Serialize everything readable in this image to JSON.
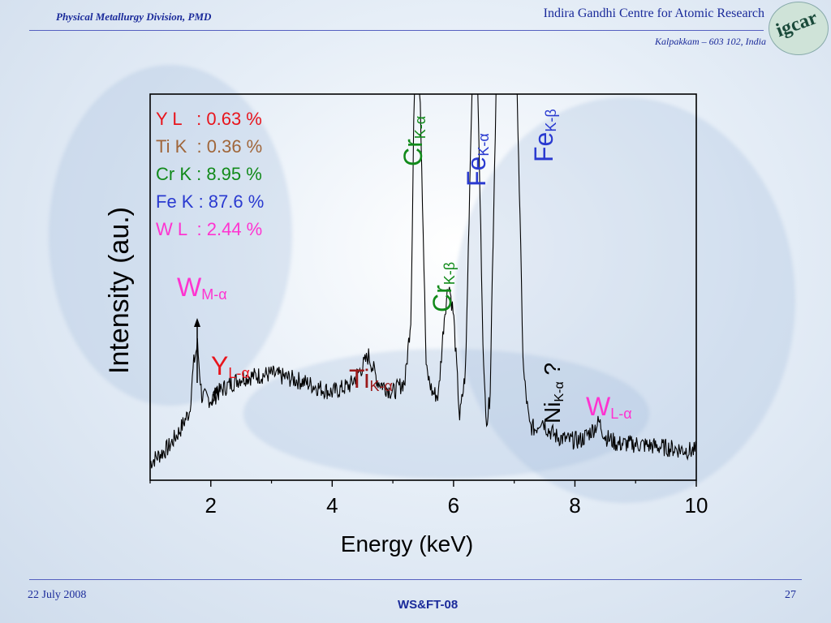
{
  "header": {
    "division": "Physical Metallurgy Division, PMD",
    "institute": "Indira Gandhi Centre for Atomic Research",
    "address": "Kalpakkam – 603 102, India",
    "logo_text": "igcar"
  },
  "footer": {
    "date": "22 July 2008",
    "event": "WS&FT-08",
    "page": "27"
  },
  "composition": [
    {
      "label": "Y L   : 0.63 %",
      "color": "#e8141c"
    },
    {
      "label": "Ti K  : 0.36 %",
      "color": "#a0663a"
    },
    {
      "label": "Cr K : 8.95 %",
      "color": "#118a1a"
    },
    {
      "label": "Fe K : 87.6 %",
      "color": "#2a3ad0"
    },
    {
      "label": "W L  : 2.44 %",
      "color": "#ff33d0"
    }
  ],
  "chart_data": {
    "type": "line",
    "xlabel": "Energy (keV)",
    "ylabel": "Intensity (au.)",
    "xlim": [
      1.0,
      10.0
    ],
    "ylim": [
      0,
      100
    ],
    "xticks": [
      2,
      4,
      6,
      8,
      10
    ],
    "series": [
      {
        "x": [
          1.0,
          1.3,
          1.5,
          1.65,
          1.72,
          1.78,
          1.85,
          2.0,
          2.2,
          2.5,
          3.0,
          3.5,
          4.0,
          4.3,
          4.5,
          4.6,
          4.75,
          5.0,
          5.2,
          5.3,
          5.35,
          5.4,
          5.45,
          5.55,
          5.65,
          5.75,
          5.85,
          5.92,
          6.0,
          6.1,
          6.2,
          6.3,
          6.35,
          6.4,
          6.5,
          6.55,
          6.6,
          6.7,
          6.8,
          6.95,
          7.0,
          7.05,
          7.15,
          7.25,
          7.35,
          7.45,
          7.55,
          7.7,
          7.9,
          8.1,
          8.3,
          8.4,
          8.5,
          8.7,
          9.0,
          9.5,
          10.0
        ],
        "y": [
          0,
          4,
          9,
          14,
          27,
          32,
          18,
          17,
          20,
          23,
          24,
          22,
          19,
          21,
          26,
          29,
          22,
          19,
          22,
          40,
          100,
          100,
          100,
          25,
          19,
          18,
          40,
          49,
          40,
          12,
          25,
          100,
          100,
          100,
          22,
          11,
          18,
          100,
          100,
          100,
          100,
          100,
          25,
          10,
          9,
          12,
          9,
          7,
          6,
          6,
          9,
          11,
          7,
          5,
          5,
          4,
          3
        ]
      }
    ],
    "annotations": [
      {
        "main": "W",
        "sub": "M-α",
        "color": "#ff33d0"
      },
      {
        "main": "Y",
        "sub": "L-α",
        "color": "#e8141c"
      },
      {
        "main": "Ti",
        "sub": "K-α",
        "color": "#9a1a1a"
      },
      {
        "main": "Cr",
        "sub": "K-α",
        "color": "#118a1a"
      },
      {
        "main": "Cr",
        "sub": "K-β",
        "color": "#118a1a"
      },
      {
        "main": "Fe",
        "sub": "K-α",
        "color": "#2a3ad0"
      },
      {
        "main": "Fe",
        "sub": "K-β",
        "color": "#2a3ad0"
      },
      {
        "main": "Ni",
        "sub": "K-α",
        "suffix": "?",
        "color": "#000000"
      },
      {
        "main": "W",
        "sub": "L-α",
        "color": "#ff33d0"
      }
    ]
  }
}
